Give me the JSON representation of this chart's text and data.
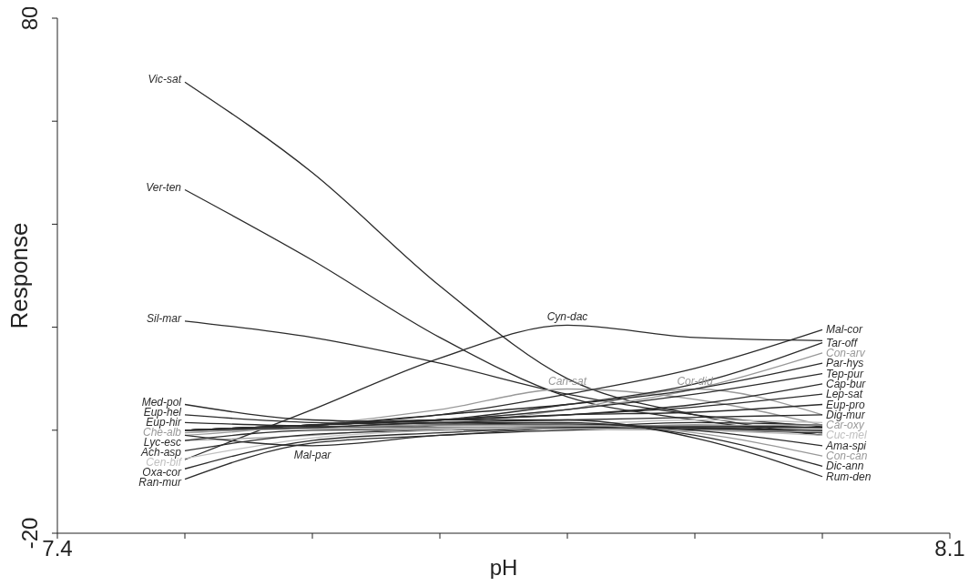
{
  "chart_data": {
    "type": "line",
    "xlabel": "pH",
    "ylabel": "Response",
    "xlim": [
      7.4,
      8.1
    ],
    "xticks": [
      7.4,
      {
        "value": 7.5,
        "label": null
      },
      {
        "value": 7.6,
        "label": null
      },
      {
        "value": 7.7,
        "label": null
      },
      {
        "value": 7.8,
        "label": null
      },
      {
        "value": 7.9,
        "label": null
      },
      {
        "value": 8.0,
        "label": null
      },
      8.1
    ],
    "ylim": [
      -20,
      80
    ],
    "yticks": [
      -20,
      {
        "value": 0,
        "label": null
      },
      {
        "value": 20,
        "label": null
      },
      {
        "value": 40,
        "label": null
      },
      {
        "value": 60,
        "label": null
      },
      80
    ],
    "x": [
      7.5,
      7.6,
      7.7,
      7.8,
      7.9,
      8.0
    ],
    "series": [
      {
        "name": "Vic-sat",
        "color": "#2b2b2b",
        "values": [
          67.6,
          50,
          28,
          10,
          3,
          -1
        ]
      },
      {
        "name": "Ver-ten",
        "color": "#2b2b2b",
        "values": [
          46.7,
          33,
          18,
          6.5,
          2,
          -1
        ]
      },
      {
        "name": "Sil-mar",
        "color": "#2b2b2b",
        "values": [
          21.2,
          18,
          13,
          7,
          3,
          0.7
        ]
      },
      {
        "name": "Cyn-dac",
        "color": "#2b2b2b",
        "values": [
          -5.7,
          4,
          14,
          20.4,
          18,
          17.4
        ]
      },
      {
        "name": "Can-sat",
        "color": "#999999",
        "values": [
          -1,
          1,
          4,
          8,
          6,
          1
        ]
      },
      {
        "name": "Cor-did",
        "color": "#999999",
        "values": [
          -2,
          -1,
          1,
          4,
          8,
          3
        ]
      },
      {
        "name": "Med-pol",
        "color": "#2b2b2b",
        "values": [
          5,
          2,
          1.5,
          1,
          0.5,
          0
        ]
      },
      {
        "name": "Eup-hel",
        "color": "#2b2b2b",
        "values": [
          3,
          1.5,
          1.2,
          1,
          0.5,
          -0.5
        ]
      },
      {
        "name": "Eup-hir",
        "color": "#2b2b2b",
        "values": [
          1.5,
          0.8,
          0.6,
          0.5,
          0,
          -0.5
        ]
      },
      {
        "name": "Che-alb",
        "color": "#999999",
        "values": [
          -0.5,
          0.4,
          0.3,
          0.2,
          0,
          -0.3
        ]
      },
      {
        "name": "Lyc-esc",
        "color": "#2b2b2b",
        "values": [
          -2,
          0,
          0.2,
          0.3,
          0.2,
          0
        ]
      },
      {
        "name": "Ach-asp",
        "color": "#2b2b2b",
        "values": [
          -4,
          -0.8,
          0,
          0.5,
          0.8,
          0.5
        ]
      },
      {
        "name": "Cen-bif",
        "color": "#c0c0c0",
        "values": [
          -5.5,
          -1.5,
          0,
          1,
          2,
          1.5
        ]
      },
      {
        "name": "Oxa-cor",
        "color": "#2b2b2b",
        "values": [
          -7.5,
          -2,
          -0.5,
          0.5,
          1,
          0.5
        ]
      },
      {
        "name": "Ran-mur",
        "color": "#2b2b2b",
        "values": [
          -9.5,
          -2.5,
          -1,
          0.5,
          1.5,
          1
        ]
      },
      {
        "name": "Mal-par",
        "color": "#2b2b2b",
        "values": [
          -1,
          -3,
          -1,
          0,
          0.5,
          0.5
        ]
      },
      {
        "name": "Mal-cor",
        "color": "#2b2b2b",
        "values": [
          0,
          1,
          3,
          7,
          12,
          19.5
        ]
      },
      {
        "name": "Tar-off",
        "color": "#2b2b2b",
        "values": [
          0,
          1,
          2,
          5,
          9,
          17
        ]
      },
      {
        "name": "Con-arv",
        "color": "#999999",
        "values": [
          0,
          0.5,
          2,
          4,
          8,
          15
        ]
      },
      {
        "name": "Par-hys",
        "color": "#2b2b2b",
        "values": [
          0,
          1,
          3,
          5,
          8,
          13
        ]
      },
      {
        "name": "Tep-pur",
        "color": "#2b2b2b",
        "values": [
          0,
          1,
          2,
          4,
          7,
          11
        ]
      },
      {
        "name": "Cap-bur",
        "color": "#2b2b2b",
        "values": [
          0,
          1,
          2,
          3,
          5,
          9
        ]
      },
      {
        "name": "Lep-sat",
        "color": "#2b2b2b",
        "values": [
          0,
          1,
          2,
          3,
          4.5,
          7
        ]
      },
      {
        "name": "Eup-pro",
        "color": "#2b2b2b",
        "values": [
          0,
          1,
          2,
          3,
          3.5,
          5
        ]
      },
      {
        "name": "Dig-mur",
        "color": "#2b2b2b",
        "values": [
          0,
          0.5,
          1.5,
          2,
          2.5,
          3
        ]
      },
      {
        "name": "Car-oxy",
        "color": "#999999",
        "values": [
          0,
          0.3,
          0.5,
          0.8,
          0.9,
          1
        ]
      },
      {
        "name": "Cuc-mel",
        "color": "#c0c0c0",
        "values": [
          0,
          0.2,
          0.3,
          0.3,
          0,
          -1
        ]
      },
      {
        "name": "Ama-spi",
        "color": "#2b2b2b",
        "values": [
          0,
          0.5,
          1,
          1.2,
          0,
          -3
        ]
      },
      {
        "name": "Con-can",
        "color": "#999999",
        "values": [
          0,
          0.5,
          1,
          1,
          -0.5,
          -5
        ]
      },
      {
        "name": "Dic-ann",
        "color": "#2b2b2b",
        "values": [
          0,
          0.5,
          1.5,
          1.5,
          -1,
          -7
        ]
      },
      {
        "name": "Rum-den",
        "color": "#2b2b2b",
        "values": [
          0,
          1,
          2,
          2,
          -1.5,
          -9
        ]
      }
    ]
  }
}
